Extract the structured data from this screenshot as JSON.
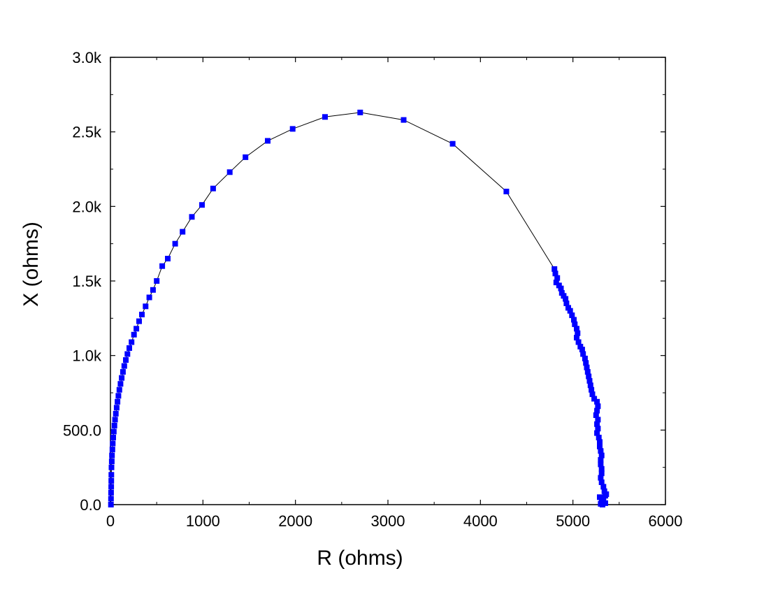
{
  "chart_data": {
    "type": "scatter",
    "title": "",
    "xlabel": "R (ohms)",
    "ylabel": "X (ohms)",
    "xlim": [
      0,
      6000
    ],
    "ylim": [
      0,
      3000
    ],
    "x_ticks": [
      0,
      1000,
      2000,
      3000,
      4000,
      5000,
      6000
    ],
    "x_tick_labels": [
      "0",
      "1000",
      "2000",
      "3000",
      "4000",
      "5000",
      "6000"
    ],
    "y_ticks": [
      0,
      500,
      1000,
      1500,
      2000,
      2500,
      3000
    ],
    "y_tick_labels": [
      "0.0",
      "500.0",
      "1.0k",
      "1.5k",
      "2.0k",
      "2.5k",
      "3.0k"
    ],
    "grid": false,
    "marker_color": "#0000ff",
    "line_color": "#000000",
    "series": [
      {
        "points": [
          [
            5,
            0
          ],
          [
            6,
            40
          ],
          [
            7,
            80
          ],
          [
            8,
            120
          ],
          [
            9,
            160
          ],
          [
            10,
            200
          ],
          [
            11,
            250
          ],
          [
            14,
            290
          ],
          [
            17,
            330
          ],
          [
            21,
            370
          ],
          [
            25,
            410
          ],
          [
            30,
            450
          ],
          [
            36,
            490
          ],
          [
            43,
            530
          ],
          [
            50,
            570
          ],
          [
            58,
            610
          ],
          [
            67,
            650
          ],
          [
            76,
            690
          ],
          [
            86,
            730
          ],
          [
            97,
            770
          ],
          [
            109,
            810
          ],
          [
            122,
            850
          ],
          [
            135,
            890
          ],
          [
            150,
            930
          ],
          [
            166,
            970
          ],
          [
            184,
            1010
          ],
          [
            204,
            1050
          ],
          [
            228,
            1090
          ],
          [
            255,
            1140
          ],
          [
            280,
            1180
          ],
          [
            310,
            1230
          ],
          [
            340,
            1275
          ],
          [
            380,
            1330
          ],
          [
            420,
            1390
          ],
          [
            460,
            1440
          ],
          [
            500,
            1500
          ],
          [
            560,
            1600
          ],
          [
            620,
            1650
          ],
          [
            700,
            1750
          ],
          [
            780,
            1830
          ],
          [
            880,
            1930
          ],
          [
            990,
            2010
          ],
          [
            1110,
            2120
          ],
          [
            1290,
            2230
          ],
          [
            1460,
            2330
          ],
          [
            1700,
            2440
          ],
          [
            1970,
            2520
          ],
          [
            2320,
            2600
          ],
          [
            2700,
            2630
          ],
          [
            3170,
            2580
          ],
          [
            3700,
            2420
          ],
          [
            4280,
            2100
          ],
          [
            4800,
            1580
          ],
          [
            4810,
            1550
          ],
          [
            4830,
            1520
          ],
          [
            4820,
            1490
          ],
          [
            4850,
            1470
          ],
          [
            4870,
            1450
          ],
          [
            4880,
            1420
          ],
          [
            4900,
            1400
          ],
          [
            4920,
            1380
          ],
          [
            4930,
            1350
          ],
          [
            4950,
            1320
          ],
          [
            4970,
            1300
          ],
          [
            4990,
            1270
          ],
          [
            5010,
            1240
          ],
          [
            5020,
            1210
          ],
          [
            5040,
            1180
          ],
          [
            5050,
            1150
          ],
          [
            5040,
            1120
          ],
          [
            5060,
            1090
          ],
          [
            5080,
            1060
          ],
          [
            5100,
            1040
          ],
          [
            5110,
            1010
          ],
          [
            5130,
            980
          ],
          [
            5140,
            950
          ],
          [
            5150,
            920
          ],
          [
            5160,
            890
          ],
          [
            5170,
            860
          ],
          [
            5180,
            830
          ],
          [
            5190,
            800
          ],
          [
            5200,
            770
          ],
          [
            5210,
            740
          ],
          [
            5230,
            710
          ],
          [
            5260,
            690
          ],
          [
            5270,
            660
          ],
          [
            5260,
            630
          ],
          [
            5250,
            600
          ],
          [
            5270,
            570
          ],
          [
            5260,
            540
          ],
          [
            5270,
            510
          ],
          [
            5260,
            480
          ],
          [
            5280,
            450
          ],
          [
            5290,
            420
          ],
          [
            5290,
            390
          ],
          [
            5300,
            360
          ],
          [
            5310,
            330
          ],
          [
            5300,
            300
          ],
          [
            5300,
            270
          ],
          [
            5310,
            240
          ],
          [
            5310,
            210
          ],
          [
            5300,
            180
          ],
          [
            5310,
            150
          ],
          [
            5330,
            120
          ],
          [
            5340,
            90
          ],
          [
            5350,
            60
          ],
          [
            5330,
            40
          ],
          [
            5310,
            20
          ],
          [
            5300,
            5
          ],
          [
            5360,
            70
          ],
          [
            5350,
            10
          ],
          [
            5290,
            50
          ],
          [
            5320,
            0
          ]
        ]
      }
    ]
  }
}
